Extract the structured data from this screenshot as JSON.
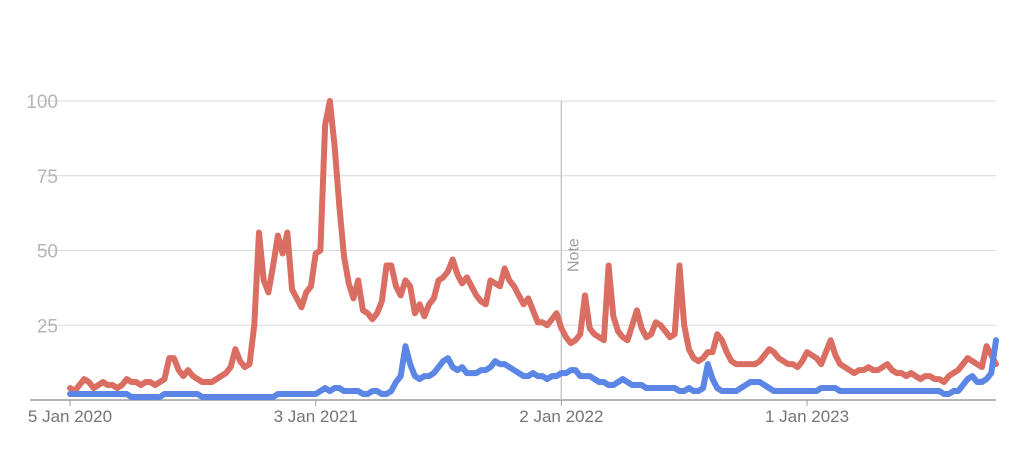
{
  "chart_data": {
    "type": "line",
    "title": "",
    "xlabel": "",
    "ylabel": "",
    "ylim": [
      0,
      100
    ],
    "yticks": [
      25,
      50,
      75,
      100
    ],
    "xticks": [
      {
        "label": "5 Jan 2020",
        "week": 0
      },
      {
        "label": "3 Jan 2021",
        "week": 52
      },
      {
        "label": "2 Jan 2022",
        "week": 104
      },
      {
        "label": "1 Jan 2023",
        "week": 156
      }
    ],
    "x_start": "2020-01-05",
    "x_interval": "weekly",
    "grid": true,
    "annotation": {
      "label": "Note",
      "week": 104
    },
    "series": [
      {
        "color": "#db6e62",
        "values": [
          4,
          3,
          5,
          7,
          6,
          4,
          5,
          6,
          5,
          5,
          4,
          5,
          7,
          6,
          6,
          5,
          6,
          6,
          5,
          6,
          7,
          14,
          14,
          10,
          8,
          10,
          8,
          7,
          6,
          6,
          6,
          7,
          8,
          9,
          11,
          17,
          13,
          11,
          12,
          25,
          56,
          40,
          36,
          45,
          55,
          49,
          56,
          37,
          34,
          31,
          36,
          38,
          49,
          50,
          92,
          100,
          85,
          65,
          48,
          39,
          34,
          40,
          30,
          29,
          27,
          29,
          33,
          45,
          45,
          38,
          35,
          40,
          38,
          29,
          32,
          28,
          32,
          34,
          40,
          41,
          43,
          47,
          42,
          39,
          41,
          38,
          35,
          33,
          32,
          40,
          39,
          38,
          44,
          40,
          38,
          35,
          32,
          34,
          30,
          26,
          26,
          25,
          27,
          29,
          24,
          21,
          19,
          20,
          22,
          35,
          24,
          22,
          21,
          20,
          45,
          28,
          23,
          21,
          20,
          25,
          30,
          24,
          21,
          22,
          26,
          25,
          23,
          21,
          22,
          45,
          25,
          17,
          14,
          13,
          14,
          16,
          16,
          22,
          20,
          16,
          13,
          12,
          12,
          12,
          12,
          12,
          13,
          15,
          17,
          16,
          14,
          13,
          12,
          12,
          11,
          13,
          16,
          15,
          14,
          12,
          16,
          20,
          15,
          12,
          11,
          10,
          9,
          10,
          10,
          11,
          10,
          10,
          11,
          12,
          10,
          9,
          9,
          8,
          9,
          8,
          7,
          8,
          8,
          7,
          7,
          6,
          8,
          9,
          10,
          12,
          14,
          13,
          12,
          11,
          18,
          15,
          12
        ]
      },
      {
        "color": "#5b86e5",
        "values": [
          2,
          2,
          2,
          2,
          2,
          2,
          2,
          2,
          2,
          2,
          2,
          2,
          2,
          1,
          1,
          1,
          1,
          1,
          1,
          1,
          2,
          2,
          2,
          2,
          2,
          2,
          2,
          2,
          1,
          1,
          1,
          1,
          1,
          1,
          1,
          1,
          1,
          1,
          1,
          1,
          1,
          1,
          1,
          1,
          2,
          2,
          2,
          2,
          2,
          2,
          2,
          2,
          2,
          3,
          4,
          3,
          4,
          4,
          3,
          3,
          3,
          3,
          2,
          2,
          3,
          3,
          2,
          2,
          3,
          6,
          8,
          18,
          12,
          8,
          7,
          8,
          8,
          9,
          11,
          13,
          14,
          11,
          10,
          11,
          9,
          9,
          9,
          10,
          10,
          11,
          13,
          12,
          12,
          11,
          10,
          9,
          8,
          8,
          9,
          8,
          8,
          7,
          8,
          8,
          9,
          9,
          10,
          10,
          8,
          8,
          8,
          7,
          6,
          6,
          5,
          5,
          6,
          7,
          6,
          5,
          5,
          5,
          4,
          4,
          4,
          4,
          4,
          4,
          4,
          3,
          3,
          4,
          3,
          3,
          4,
          12,
          7,
          4,
          3,
          3,
          3,
          3,
          4,
          5,
          6,
          6,
          6,
          5,
          4,
          3,
          3,
          3,
          3,
          3,
          3,
          3,
          3,
          3,
          3,
          4,
          4,
          4,
          4,
          3,
          3,
          3,
          3,
          3,
          3,
          3,
          3,
          3,
          3,
          3,
          3,
          3,
          3,
          3,
          3,
          3,
          3,
          3,
          3,
          3,
          3,
          2,
          2,
          3,
          3,
          5,
          7,
          8,
          6,
          6,
          7,
          9,
          20
        ]
      }
    ]
  }
}
